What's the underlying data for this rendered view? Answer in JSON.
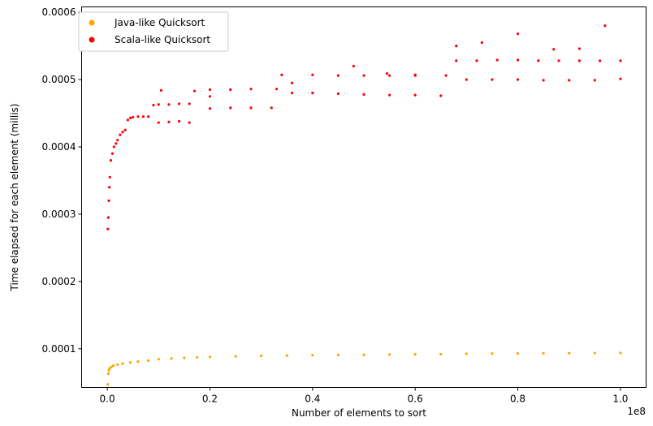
{
  "chart_data": {
    "type": "scatter",
    "xlabel": "Number of elements to sort",
    "ylabel": "Time elapsed for each element (millis)",
    "x_offset_label": "1e8",
    "xlim": [
      -0.05,
      1.05
    ],
    "ylim": [
      4.25e-05,
      0.000608
    ],
    "x_ticks": [
      0.0,
      0.2,
      0.4,
      0.6,
      0.8,
      1.0
    ],
    "x_tick_labels": [
      "0.0",
      "0.2",
      "0.4",
      "0.6",
      "0.8",
      "1.0"
    ],
    "y_ticks": [
      0.0001,
      0.0002,
      0.0003,
      0.0004,
      0.0005,
      0.0006
    ],
    "y_tick_labels": [
      "0.0001",
      "0.0002",
      "0.0003",
      "0.0004",
      "0.0005",
      "0.0006"
    ],
    "grid": false,
    "legend_position": "top-left",
    "series": [
      {
        "name": "Java-like Quicksort",
        "color": "#ffa500",
        "x": [
          0.001,
          0.002,
          0.003,
          0.005,
          0.008,
          0.012,
          0.02,
          0.03,
          0.045,
          0.06,
          0.08,
          0.1,
          0.125,
          0.15,
          0.175,
          0.2,
          0.25,
          0.3,
          0.35,
          0.4,
          0.45,
          0.5,
          0.55,
          0.6,
          0.65,
          0.7,
          0.75,
          0.8,
          0.85,
          0.9,
          0.95,
          1.0
        ],
        "y": [
          4.7e-05,
          6.3e-05,
          6.8e-05,
          7.1e-05,
          7.3e-05,
          7.5e-05,
          7.65e-05,
          7.8e-05,
          7.95e-05,
          8.1e-05,
          8.25e-05,
          8.45e-05,
          8.55e-05,
          8.65e-05,
          8.72e-05,
          8.78e-05,
          8.88e-05,
          8.95e-05,
          9e-05,
          9.05e-05,
          9.08e-05,
          9.1e-05,
          9.13e-05,
          9.18e-05,
          9.2e-05,
          9.25e-05,
          9.28e-05,
          9.3e-05,
          9.32e-05,
          9.35e-05,
          9.37e-05,
          9.38e-05
        ]
      },
      {
        "name": "Scala-like Quicksort",
        "color": "#ff0000",
        "x": [
          0.001,
          0.002,
          0.003,
          0.004,
          0.005,
          0.007,
          0.01,
          0.013,
          0.017,
          0.02,
          0.025,
          0.03,
          0.035,
          0.04,
          0.045,
          0.05,
          0.06,
          0.07,
          0.08,
          0.09,
          0.1,
          0.12,
          0.14,
          0.16,
          0.17,
          0.2,
          0.24,
          0.28,
          0.33,
          0.34,
          0.4,
          0.45,
          0.5,
          0.55,
          0.6,
          0.66,
          0.68,
          0.72,
          0.76,
          0.8,
          0.84,
          0.88,
          0.92,
          0.96,
          1.0
        ],
        "y": [
          0.000278,
          0.000295,
          0.00032,
          0.00034,
          0.000355,
          0.00038,
          0.00039,
          0.0004,
          0.000405,
          0.00041,
          0.000418,
          0.000422,
          0.000425,
          0.00044,
          0.000443,
          0.000444,
          0.000445,
          0.000445,
          0.000445,
          0.000462,
          0.000463,
          0.000463,
          0.000464,
          0.000464,
          0.000483,
          0.000485,
          0.000485,
          0.000486,
          0.000486,
          0.000507,
          0.000507,
          0.000506,
          0.000506,
          0.000506,
          0.000506,
          0.000506,
          0.000528,
          0.000528,
          0.000529,
          0.000529,
          0.000528,
          0.000528,
          0.000528,
          0.000528,
          0.000528
        ]
      },
      {
        "name": "",
        "color": "#ff0000",
        "x": [
          0.1,
          0.12,
          0.14,
          0.16,
          0.2,
          0.24,
          0.28,
          0.32,
          0.36,
          0.4,
          0.45,
          0.5,
          0.55,
          0.6,
          0.65,
          0.7,
          0.75,
          0.8,
          0.85,
          0.9,
          0.95,
          1.0
        ],
        "y": [
          0.000436,
          0.000437,
          0.000438,
          0.000436,
          0.000457,
          0.000458,
          0.000458,
          0.000458,
          0.00048,
          0.00048,
          0.000479,
          0.000478,
          0.000477,
          0.000477,
          0.000476,
          0.0005,
          0.0005,
          0.0005,
          0.000499,
          0.000499,
          0.000499,
          0.000501
        ]
      },
      {
        "name": "",
        "color": "#ff0000",
        "x": [
          0.105,
          0.2,
          0.36,
          0.48,
          0.545,
          0.6,
          0.68,
          0.73,
          0.8,
          0.87,
          0.92,
          0.97
        ],
        "y": [
          0.000484,
          0.000475,
          0.000495,
          0.00052,
          0.000509,
          0.000507,
          0.00055,
          0.000555,
          0.000568,
          0.000545,
          0.000546,
          0.00058
        ]
      }
    ]
  }
}
